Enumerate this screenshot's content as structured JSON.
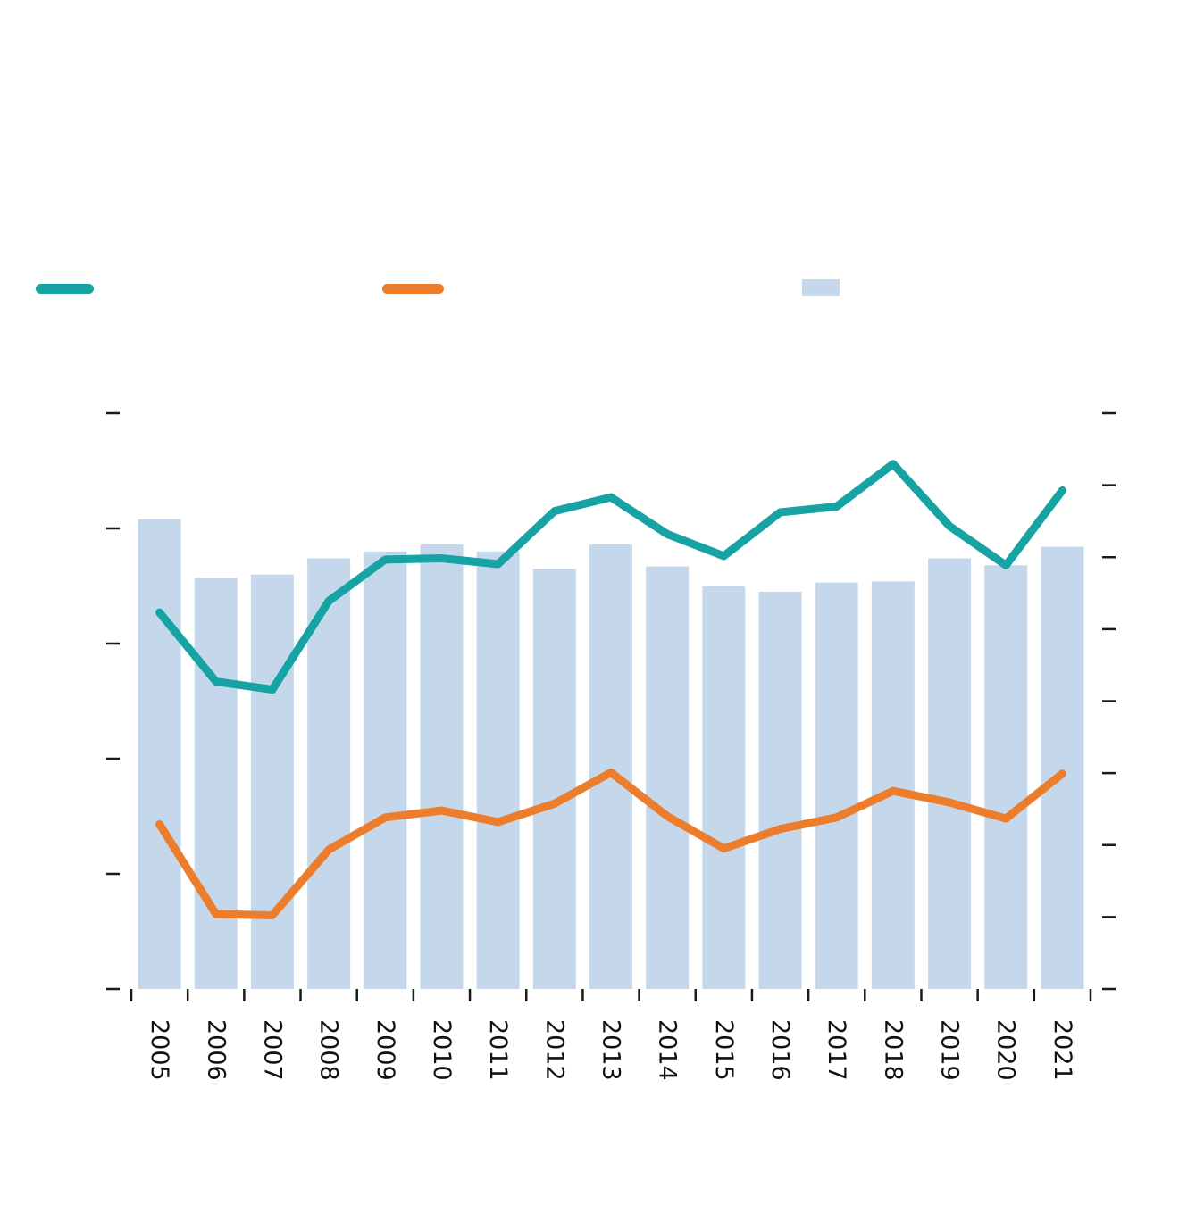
{
  "colors": {
    "teal": "#17a3a3",
    "orange": "#ec7d2d",
    "bar": "#c5d8eb",
    "tick": "#1a1a1a",
    "label": "#111111",
    "background": "#ffffff"
  },
  "legend": {
    "entries": [
      {
        "name": "teal-line-series",
        "swatch_type": "line",
        "color": "#17a3a3",
        "label": ""
      },
      {
        "name": "orange-line-series",
        "swatch_type": "line",
        "color": "#ec7d2d",
        "label": ""
      },
      {
        "name": "bar-series",
        "swatch_type": "patch",
        "color": "#c5d8eb",
        "label": ""
      }
    ]
  },
  "chart_data": {
    "type": "combo-bar-line",
    "title": "",
    "xlabel": "",
    "ylabel": "",
    "categories": [
      "2005",
      "2006",
      "2007",
      "2008",
      "2009",
      "2010",
      "2011",
      "2012",
      "2013",
      "2014",
      "2015",
      "2016",
      "2017",
      "2018",
      "2019",
      "2020",
      "2021"
    ],
    "series": [
      {
        "name": "bars",
        "type": "bar",
        "color": "#c5d8eb",
        "values": [
          4.08,
          3.57,
          3.6,
          3.74,
          3.8,
          3.86,
          3.8,
          3.65,
          3.86,
          3.67,
          3.5,
          3.45,
          3.53,
          3.54,
          3.74,
          3.68,
          3.84
        ]
      },
      {
        "name": "teal-line",
        "type": "line",
        "color": "#17a3a3",
        "values": [
          3.27,
          2.67,
          2.6,
          3.37,
          3.73,
          3.74,
          3.69,
          4.15,
          4.27,
          3.95,
          3.76,
          4.14,
          4.19,
          4.56,
          4.02,
          3.68,
          4.33
        ]
      },
      {
        "name": "orange-line",
        "type": "line",
        "color": "#ec7d2d",
        "values": [
          1.43,
          0.65,
          0.64,
          1.21,
          1.49,
          1.55,
          1.45,
          1.61,
          1.88,
          1.5,
          1.22,
          1.39,
          1.49,
          1.72,
          1.62,
          1.48,
          1.87
        ]
      }
    ],
    "left_axis": {
      "tick_count": 6,
      "range_in_tick_units": [
        0,
        5
      ],
      "tick_labels_visible": false
    },
    "right_axis": {
      "tick_count": 9,
      "range_in_tick_units": [
        0,
        8
      ],
      "tick_labels_visible": false
    },
    "x_axis": {
      "tick_position": "category-boundaries",
      "tick_count": 18,
      "label_rotation_deg": 90
    },
    "grid": "off",
    "legend_position": "top",
    "note": "Axis tick labels, legend labels and title are not visible in the image; series values are expressed in left-axis tick units (0 = baseline, 5 = top tick)."
  }
}
